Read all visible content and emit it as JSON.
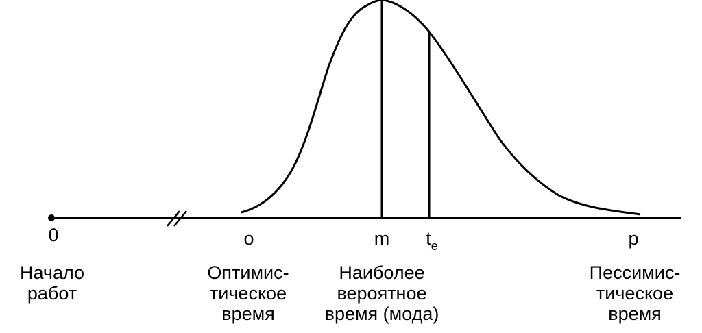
{
  "ticks": {
    "zero": "0",
    "o": "o",
    "m": "m",
    "te_main": "t",
    "te_sub": "e",
    "p": "p"
  },
  "labels": {
    "start_line1": "Начало",
    "start_line2": "работ",
    "optimistic_line1": "Оптимис-",
    "optimistic_line2": "тическое",
    "optimistic_line3": "время",
    "mode_line1": "Наиболее",
    "mode_line2": "вероятное",
    "mode_line3": "время (мода)",
    "pessimistic_line1": "Пессимис-",
    "pessimistic_line2": "тическое",
    "pessimistic_line3": "время"
  }
}
